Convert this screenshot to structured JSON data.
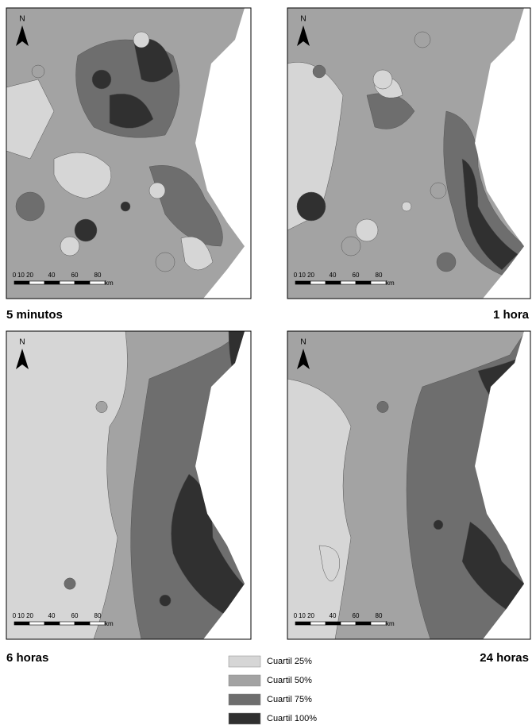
{
  "panels": [
    {
      "title": "5 minutos",
      "north": "N",
      "scale": {
        "ticks": [
          "0",
          "10 20",
          "40",
          "60",
          "80"
        ],
        "unit": "km"
      }
    },
    {
      "title": "1 hora",
      "north": "N",
      "scale": {
        "ticks": [
          "0",
          "10 20",
          "40",
          "60",
          "80"
        ],
        "unit": "km"
      }
    },
    {
      "title": "6 horas",
      "north": "N",
      "scale": {
        "ticks": [
          "0",
          "10 20",
          "40",
          "60",
          "80"
        ],
        "unit": "km"
      }
    },
    {
      "title": "24 horas",
      "north": "N",
      "scale": {
        "ticks": [
          "0",
          "10 20",
          "40",
          "60",
          "80"
        ],
        "unit": "km"
      }
    }
  ],
  "legend": [
    {
      "label": "Cuartil 25%",
      "color": "#d6d6d6"
    },
    {
      "label": "Cuartil 50%",
      "color": "#a3a3a3"
    },
    {
      "label": "Cuartil 75%",
      "color": "#6e6e6e"
    },
    {
      "label": "Cuartil 100%",
      "color": "#303030"
    }
  ]
}
